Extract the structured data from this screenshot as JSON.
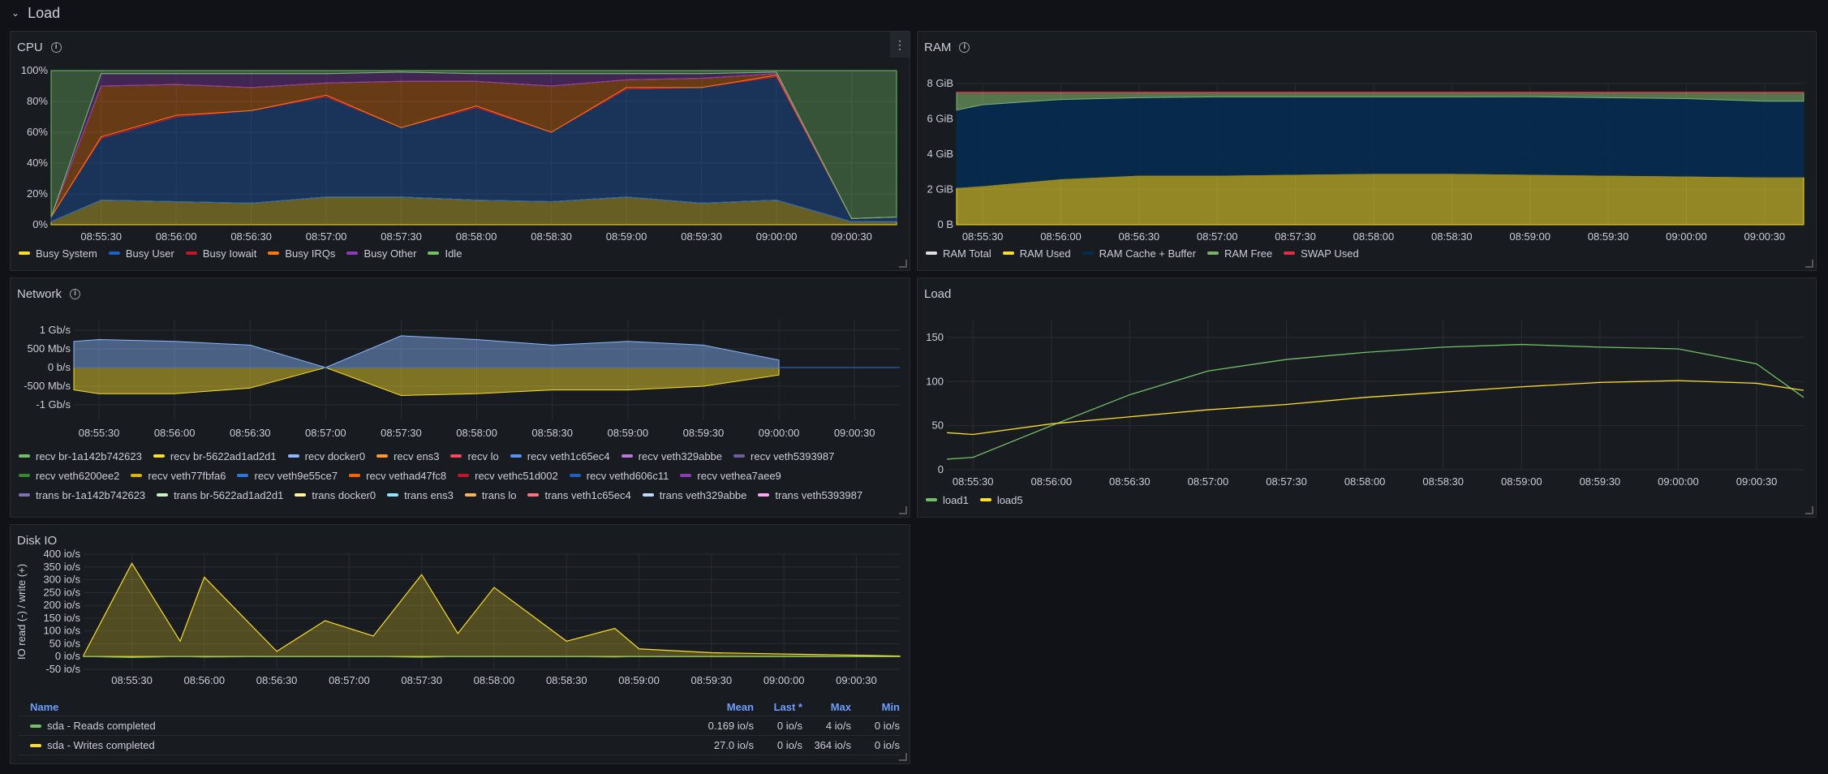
{
  "row": {
    "title": "Load"
  },
  "cpu": {
    "title": "CPU",
    "y_ticks": [
      "100%",
      "80%",
      "60%",
      "40%",
      "20%",
      "0%"
    ],
    "x_ticks": [
      "08:55:30",
      "08:56:00",
      "08:56:30",
      "08:57:00",
      "08:57:30",
      "08:58:00",
      "08:58:30",
      "08:59:00",
      "08:59:30",
      "09:00:00",
      "09:00:30"
    ],
    "legend": [
      {
        "label": "Busy System",
        "color": "#fade2a"
      },
      {
        "label": "Busy User",
        "color": "#1f60c4"
      },
      {
        "label": "Busy Iowait",
        "color": "#c4162a"
      },
      {
        "label": "Busy IRQs",
        "color": "#ff780a"
      },
      {
        "label": "Busy Other",
        "color": "#8f3bb8"
      },
      {
        "label": "Idle",
        "color": "#73bf69"
      }
    ]
  },
  "ram": {
    "title": "RAM",
    "y_ticks": [
      "8 GiB",
      "6 GiB",
      "4 GiB",
      "2 GiB",
      "0 B"
    ],
    "x_ticks": [
      "08:55:30",
      "08:56:00",
      "08:56:30",
      "08:57:00",
      "08:57:30",
      "08:58:00",
      "08:58:30",
      "08:59:00",
      "08:59:30",
      "09:00:00",
      "09:00:30"
    ],
    "legend": [
      {
        "label": "RAM Total",
        "color": "#e0e0e0"
      },
      {
        "label": "RAM Used",
        "color": "#fade2a"
      },
      {
        "label": "RAM Cache + Buffer",
        "color": "#052b51"
      },
      {
        "label": "RAM Free",
        "color": "#7eb26d"
      },
      {
        "label": "SWAP Used",
        "color": "#e02f44"
      }
    ]
  },
  "network": {
    "title": "Network",
    "y_ticks": [
      "1 Gb/s",
      "500 Mb/s",
      "0 b/s",
      "-500 Mb/s",
      "-1 Gb/s"
    ],
    "x_ticks": [
      "08:55:30",
      "08:56:00",
      "08:56:30",
      "08:57:00",
      "08:57:30",
      "08:58:00",
      "08:58:30",
      "08:59:00",
      "08:59:30",
      "09:00:00",
      "09:00:30"
    ],
    "legend": [
      {
        "label": "recv br-1a142b742623",
        "color": "#73bf69"
      },
      {
        "label": "recv br-5622ad1ad2d1",
        "color": "#fade2a"
      },
      {
        "label": "recv docker0",
        "color": "#8ab8ff"
      },
      {
        "label": "recv ens3",
        "color": "#ff9830"
      },
      {
        "label": "recv lo",
        "color": "#f2495c"
      },
      {
        "label": "recv veth1c65ec4",
        "color": "#5794f2"
      },
      {
        "label": "recv veth329abbe",
        "color": "#b877d9"
      },
      {
        "label": "recv veth5393987",
        "color": "#705da0"
      },
      {
        "label": "recv veth6200ee2",
        "color": "#37872d"
      },
      {
        "label": "recv veth77fbfa6",
        "color": "#e0b400"
      },
      {
        "label": "recv veth9e55ce7",
        "color": "#3274d9"
      },
      {
        "label": "recv vethad47fc8",
        "color": "#fa6400"
      },
      {
        "label": "recv vethc51d002",
        "color": "#c4162a"
      },
      {
        "label": "recv vethd606c11",
        "color": "#1f60c4"
      },
      {
        "label": "recv vethea7aee9",
        "color": "#8f3bb8"
      },
      {
        "label": "trans br-1a142b742623",
        "color": "#806eb7"
      },
      {
        "label": "trans br-5622ad1ad2d1",
        "color": "#c8f2c2"
      },
      {
        "label": "trans docker0",
        "color": "#fff899"
      },
      {
        "label": "trans ens3",
        "color": "#8ae6ff"
      },
      {
        "label": "trans lo",
        "color": "#ffb357"
      },
      {
        "label": "trans veth1c65ec4",
        "color": "#ff7383"
      },
      {
        "label": "trans veth329abbe",
        "color": "#c0d8ff"
      },
      {
        "label": "trans veth5393987",
        "color": "#ffa6f6"
      }
    ]
  },
  "load": {
    "title": "Load",
    "y_ticks": [
      "150",
      "100",
      "50",
      "0"
    ],
    "x_ticks": [
      "08:55:30",
      "08:56:00",
      "08:56:30",
      "08:57:00",
      "08:57:30",
      "08:58:00",
      "08:58:30",
      "08:59:00",
      "08:59:30",
      "09:00:00",
      "09:00:30"
    ],
    "legend": [
      {
        "label": "load1",
        "color": "#73bf69"
      },
      {
        "label": "load5",
        "color": "#fade2a"
      }
    ]
  },
  "disk": {
    "title": "Disk IO",
    "y_axis_label": "IO read (-) / write (+)",
    "y_ticks": [
      "400 io/s",
      "350 io/s",
      "300 io/s",
      "250 io/s",
      "200 io/s",
      "150 io/s",
      "100 io/s",
      "50 io/s",
      "0 io/s",
      "-50 io/s"
    ],
    "x_ticks": [
      "08:55:30",
      "08:56:00",
      "08:56:30",
      "08:57:00",
      "08:57:30",
      "08:58:00",
      "08:58:30",
      "08:59:00",
      "08:59:30",
      "09:00:00",
      "09:00:30"
    ],
    "table": {
      "headers": {
        "name": "Name",
        "mean": "Mean",
        "last": "Last *",
        "max": "Max",
        "min": "Min"
      },
      "rows": [
        {
          "name": "sda - Reads completed",
          "color": "#73bf69",
          "mean": "0.169 io/s",
          "last": "0 io/s",
          "max": "4 io/s",
          "min": "0 io/s"
        },
        {
          "name": "sda - Writes completed",
          "color": "#fade2a",
          "mean": "27.0 io/s",
          "last": "0 io/s",
          "max": "364 io/s",
          "min": "0 io/s"
        }
      ]
    }
  },
  "chart_data": [
    {
      "type": "area",
      "title": "CPU",
      "ylim": [
        0,
        100
      ],
      "unit": "%",
      "x": [
        "08:55:10",
        "08:55:30",
        "08:56:00",
        "08:56:30",
        "08:57:00",
        "08:57:30",
        "08:58:00",
        "08:58:30",
        "08:59:00",
        "08:59:30",
        "09:00:00",
        "09:00:30",
        "09:00:48"
      ],
      "series": [
        {
          "name": "Busy System",
          "values": [
            2,
            16,
            15,
            14,
            18,
            18,
            16,
            15,
            18,
            14,
            16,
            2,
            2
          ]
        },
        {
          "name": "Busy User",
          "values": [
            3,
            40,
            55,
            60,
            65,
            45,
            60,
            45,
            70,
            75,
            80,
            2,
            3
          ]
        },
        {
          "name": "Busy Iowait",
          "values": [
            0,
            1,
            1,
            0,
            1,
            0,
            1,
            0,
            1,
            0,
            1,
            0,
            0
          ]
        },
        {
          "name": "Busy IRQs",
          "values": [
            0,
            33,
            20,
            15,
            8,
            30,
            16,
            30,
            5,
            6,
            1,
            0,
            0
          ]
        },
        {
          "name": "Busy Other",
          "values": [
            0,
            8,
            7,
            9,
            6,
            6,
            5,
            8,
            4,
            3,
            1,
            0,
            0
          ]
        },
        {
          "name": "Idle",
          "values": [
            95,
            2,
            2,
            2,
            2,
            1,
            2,
            2,
            2,
            2,
            1,
            96,
            95
          ]
        }
      ]
    },
    {
      "type": "area",
      "title": "RAM",
      "ylim": [
        0,
        8
      ],
      "unit": "GiB",
      "x": [
        "08:55:20",
        "08:55:30",
        "08:56:00",
        "08:56:30",
        "08:57:00",
        "08:57:30",
        "08:58:00",
        "08:58:30",
        "08:59:00",
        "08:59:30",
        "09:00:00",
        "09:00:30",
        "09:00:45"
      ],
      "series": [
        {
          "name": "RAM Total",
          "values": [
            7.5,
            7.5,
            7.5,
            7.5,
            7.5,
            7.5,
            7.5,
            7.5,
            7.5,
            7.5,
            7.5,
            7.5,
            7.5
          ]
        },
        {
          "name": "RAM Used",
          "values": [
            2.1,
            2.2,
            2.6,
            2.8,
            2.8,
            2.85,
            2.9,
            2.9,
            2.85,
            2.8,
            2.75,
            2.7,
            2.7
          ]
        },
        {
          "name": "RAM Cache + Buffer",
          "values": [
            4.4,
            4.6,
            4.5,
            4.4,
            4.45,
            4.4,
            4.35,
            4.35,
            4.4,
            4.4,
            4.4,
            4.3,
            4.3
          ]
        },
        {
          "name": "RAM Free",
          "values": [
            1.0,
            0.7,
            0.4,
            0.3,
            0.25,
            0.25,
            0.25,
            0.25,
            0.25,
            0.3,
            0.35,
            0.5,
            0.5
          ]
        },
        {
          "name": "SWAP Used",
          "values": [
            0.05,
            0.05,
            0.05,
            0.05,
            0.05,
            0.05,
            0.05,
            0.05,
            0.05,
            0.05,
            0.05,
            0.05,
            0.05
          ]
        }
      ]
    },
    {
      "type": "area",
      "title": "Network",
      "ylim": [
        -1.2,
        1.2
      ],
      "unit": "Gb/s",
      "x": [
        "08:55:20",
        "08:55:30",
        "08:56:00",
        "08:56:30",
        "08:57:00",
        "08:57:30",
        "08:58:00",
        "08:58:30",
        "08:59:00",
        "08:59:30",
        "09:00:00"
      ],
      "series": [
        {
          "name": "recv docker0",
          "values": [
            0.7,
            0.75,
            0.7,
            0.6,
            0.0,
            0.85,
            0.75,
            0.6,
            0.7,
            0.6,
            0.2
          ]
        },
        {
          "name": "trans br-5622ad1ad2d1",
          "values": [
            -0.6,
            -0.7,
            -0.7,
            -0.55,
            0.0,
            -0.75,
            -0.7,
            -0.6,
            -0.6,
            -0.5,
            -0.2
          ]
        }
      ]
    },
    {
      "type": "line",
      "title": "Load",
      "ylim": [
        0,
        160
      ],
      "x": [
        "08:55:20",
        "08:55:30",
        "08:56:00",
        "08:56:30",
        "08:57:00",
        "08:57:30",
        "08:58:00",
        "08:58:30",
        "08:59:00",
        "08:59:30",
        "09:00:00",
        "09:00:30",
        "09:00:48"
      ],
      "series": [
        {
          "name": "load1",
          "values": [
            12,
            14,
            50,
            85,
            112,
            125,
            133,
            139,
            142,
            139,
            137,
            120,
            82
          ]
        },
        {
          "name": "load5",
          "values": [
            42,
            40,
            52,
            60,
            68,
            74,
            82,
            88,
            94,
            99,
            101,
            98,
            90
          ]
        }
      ]
    },
    {
      "type": "area",
      "title": "Disk IO",
      "ylim": [
        -50,
        400
      ],
      "unit": "io/s",
      "x": [
        "08:55:10",
        "08:55:30",
        "08:55:50",
        "08:56:00",
        "08:56:30",
        "08:56:50",
        "08:57:10",
        "08:57:30",
        "08:57:45",
        "08:58:00",
        "08:58:30",
        "08:58:50",
        "08:59:00",
        "08:59:30",
        "09:00:00",
        "09:00:30",
        "09:00:48"
      ],
      "series": [
        {
          "name": "sda - Writes completed",
          "values": [
            5,
            364,
            60,
            310,
            20,
            140,
            80,
            320,
            90,
            270,
            60,
            110,
            30,
            15,
            10,
            5,
            2
          ]
        },
        {
          "name": "sda - Reads completed",
          "values": [
            0,
            -4,
            0,
            -2,
            0,
            -1,
            0,
            -3,
            0,
            -1,
            0,
            -2,
            0,
            -1,
            0,
            0,
            0
          ]
        }
      ]
    }
  ]
}
